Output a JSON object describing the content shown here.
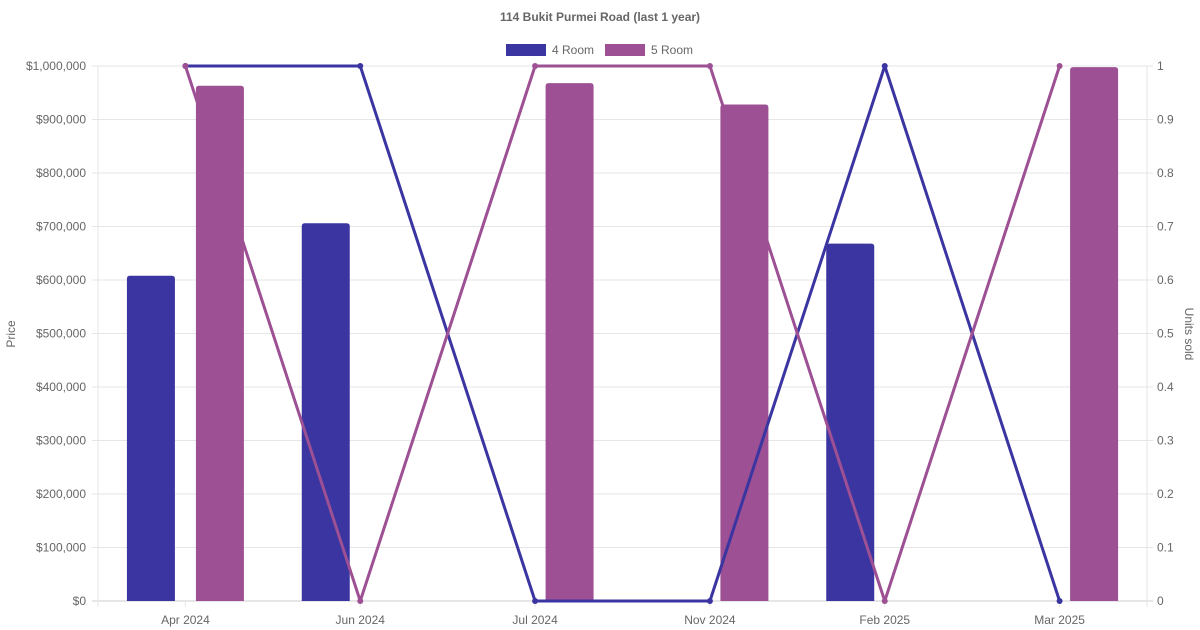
{
  "chart_data": {
    "type": "bar",
    "title": "114 Bukit Purmei Road (last 1 year)",
    "categories": [
      "Apr 2024",
      "Jun 2024",
      "Jul 2024",
      "Nov 2024",
      "Feb 2025",
      "Mar 2025"
    ],
    "ylabel_left": "Price",
    "ylabel_right": "Units sold",
    "ylim_left": [
      0,
      1000000
    ],
    "ylim_right": [
      0,
      1
    ],
    "yticks_left": [
      "$0",
      "$100,000",
      "$200,000",
      "$300,000",
      "$400,000",
      "$500,000",
      "$600,000",
      "$700,000",
      "$800,000",
      "$900,000",
      "$1,000,000"
    ],
    "yticks_right": [
      "0",
      "0.1",
      "0.2",
      "0.3",
      "0.4",
      "0.5",
      "0.6",
      "0.7",
      "0.8",
      "0.9",
      "1"
    ],
    "grid": true,
    "legend_position": "top-center",
    "series": [
      {
        "name": "4 Room",
        "color": "#3a35a0",
        "price_values": [
          608000,
          706000,
          null,
          null,
          668000,
          null
        ],
        "units_values": [
          1,
          1,
          0,
          0,
          1,
          0
        ]
      },
      {
        "name": "5 Room",
        "color": "#9d5093",
        "price_values": [
          963000,
          null,
          968000,
          928000,
          null,
          998000
        ],
        "units_values": [
          1,
          0,
          1,
          1,
          0,
          1
        ]
      }
    ]
  }
}
